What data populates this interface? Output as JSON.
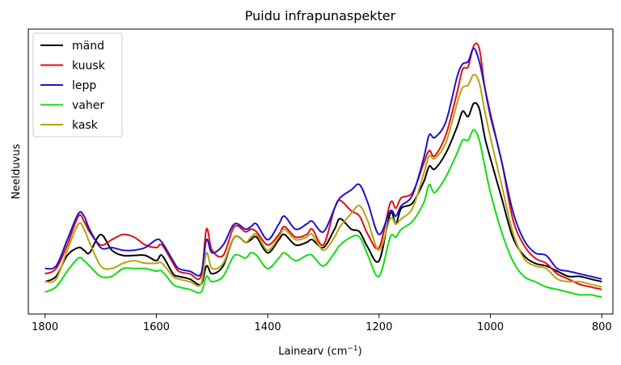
{
  "chart_data": {
    "type": "line",
    "title": "Puidu infrapunaspekter",
    "xlabel": "Lainearv (cm",
    "xlabel_sup": "−1",
    "xlabel_end": ")",
    "ylabel": "Neelduvus",
    "x_inverted": true,
    "xlim": [
      1830,
      780
    ],
    "ylim": [
      0,
      1
    ],
    "x_ticks": [
      1800,
      1600,
      1400,
      1200,
      1000,
      800
    ],
    "x_tick_labels": [
      "1800",
      "1600",
      "1400",
      "1200",
      "1000",
      "800"
    ],
    "y_ticks_shown": false,
    "grid": false,
    "legend_position": "top-left",
    "x": [
      1800,
      1780,
      1760,
      1740,
      1730,
      1720,
      1700,
      1680,
      1660,
      1640,
      1620,
      1600,
      1590,
      1570,
      1560,
      1540,
      1520,
      1510,
      1500,
      1480,
      1460,
      1440,
      1430,
      1420,
      1400,
      1380,
      1370,
      1350,
      1330,
      1320,
      1300,
      1280,
      1270,
      1250,
      1235,
      1220,
      1200,
      1180,
      1170,
      1160,
      1140,
      1120,
      1110,
      1100,
      1080,
      1060,
      1050,
      1040,
      1030,
      1020,
      1010,
      1000,
      980,
      960,
      940,
      920,
      900,
      880,
      860,
      840,
      820,
      800
    ],
    "series": [
      {
        "name": "mänd",
        "color": "#000000",
        "values": [
          0.08,
          0.1,
          0.18,
          0.21,
          0.2,
          0.19,
          0.26,
          0.2,
          0.18,
          0.18,
          0.18,
          0.16,
          0.18,
          0.11,
          0.1,
          0.09,
          0.07,
          0.14,
          0.11,
          0.14,
          0.25,
          0.23,
          0.24,
          0.25,
          0.19,
          0.24,
          0.26,
          0.22,
          0.23,
          0.24,
          0.21,
          0.28,
          0.32,
          0.28,
          0.27,
          0.21,
          0.16,
          0.34,
          0.3,
          0.36,
          0.38,
          0.46,
          0.52,
          0.51,
          0.57,
          0.67,
          0.73,
          0.71,
          0.76,
          0.74,
          0.63,
          0.55,
          0.4,
          0.25,
          0.18,
          0.15,
          0.14,
          0.12,
          0.1,
          0.1,
          0.09,
          0.08
        ]
      },
      {
        "name": "kuusk",
        "color": "#dd1111",
        "values": [
          0.11,
          0.13,
          0.22,
          0.33,
          0.31,
          0.27,
          0.22,
          0.24,
          0.26,
          0.25,
          0.22,
          0.21,
          0.22,
          0.15,
          0.12,
          0.11,
          0.1,
          0.28,
          0.2,
          0.18,
          0.29,
          0.27,
          0.28,
          0.27,
          0.22,
          0.26,
          0.29,
          0.25,
          0.26,
          0.28,
          0.22,
          0.36,
          0.39,
          0.35,
          0.33,
          0.26,
          0.21,
          0.38,
          0.36,
          0.4,
          0.42,
          0.53,
          0.58,
          0.56,
          0.64,
          0.8,
          0.89,
          0.9,
          0.98,
          0.97,
          0.82,
          0.71,
          0.54,
          0.32,
          0.22,
          0.17,
          0.15,
          0.11,
          0.09,
          0.07,
          0.06,
          0.05
        ]
      },
      {
        "name": "lepp",
        "color": "#2211cc",
        "values": [
          0.13,
          0.14,
          0.24,
          0.34,
          0.33,
          0.28,
          0.21,
          0.21,
          0.2,
          0.2,
          0.21,
          0.24,
          0.23,
          0.16,
          0.13,
          0.12,
          0.11,
          0.24,
          0.19,
          0.22,
          0.3,
          0.28,
          0.29,
          0.3,
          0.24,
          0.3,
          0.33,
          0.28,
          0.3,
          0.31,
          0.27,
          0.36,
          0.4,
          0.43,
          0.45,
          0.38,
          0.26,
          0.35,
          0.33,
          0.37,
          0.41,
          0.55,
          0.64,
          0.63,
          0.69,
          0.86,
          0.91,
          0.92,
          0.97,
          0.92,
          0.82,
          0.72,
          0.54,
          0.35,
          0.24,
          0.19,
          0.18,
          0.13,
          0.12,
          0.11,
          0.1,
          0.09
        ]
      },
      {
        "name": "vaher",
        "color": "#11dd11",
        "values": [
          0.04,
          0.06,
          0.12,
          0.17,
          0.16,
          0.14,
          0.1,
          0.1,
          0.13,
          0.13,
          0.13,
          0.12,
          0.12,
          0.07,
          0.06,
          0.05,
          0.04,
          0.1,
          0.08,
          0.1,
          0.18,
          0.17,
          0.19,
          0.18,
          0.13,
          0.17,
          0.19,
          0.16,
          0.18,
          0.18,
          0.14,
          0.19,
          0.22,
          0.25,
          0.25,
          0.18,
          0.1,
          0.25,
          0.25,
          0.28,
          0.31,
          0.38,
          0.45,
          0.42,
          0.48,
          0.57,
          0.62,
          0.62,
          0.66,
          0.62,
          0.52,
          0.42,
          0.27,
          0.16,
          0.1,
          0.08,
          0.06,
          0.05,
          0.04,
          0.03,
          0.03,
          0.02
        ]
      },
      {
        "name": "kask",
        "color": "#b3a412",
        "values": [
          0.08,
          0.09,
          0.2,
          0.3,
          0.28,
          0.23,
          0.14,
          0.13,
          0.15,
          0.16,
          0.15,
          0.15,
          0.15,
          0.1,
          0.09,
          0.08,
          0.07,
          0.19,
          0.13,
          0.15,
          0.25,
          0.23,
          0.25,
          0.26,
          0.2,
          0.25,
          0.28,
          0.24,
          0.25,
          0.26,
          0.2,
          0.25,
          0.29,
          0.34,
          0.37,
          0.31,
          0.2,
          0.32,
          0.3,
          0.32,
          0.36,
          0.49,
          0.56,
          0.55,
          0.61,
          0.76,
          0.82,
          0.83,
          0.87,
          0.84,
          0.73,
          0.63,
          0.45,
          0.27,
          0.17,
          0.14,
          0.13,
          0.09,
          0.08,
          0.08,
          0.07,
          0.06
        ]
      }
    ]
  }
}
